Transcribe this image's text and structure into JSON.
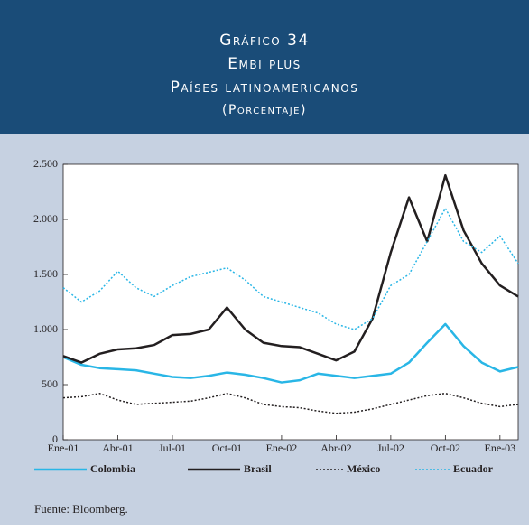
{
  "chart_data": {
    "type": "line",
    "title_lines": [
      "Gráfico 34",
      "Embi plus",
      "Países latinoamericanos",
      "(Porcentaje)"
    ],
    "source": "Fuente: Bloomberg.",
    "categories": [
      "Ene-01",
      null,
      null,
      "Abr-01",
      null,
      null,
      "Jul-01",
      null,
      null,
      "Oct-01",
      null,
      null,
      "Ene-02",
      null,
      null,
      "Abr-02",
      null,
      null,
      "Jul-02",
      null,
      null,
      "Oct-02",
      null,
      null,
      "Ene-03",
      null
    ],
    "series": [
      {
        "name": "Colombia",
        "color": "#29b6e6",
        "style": "solid",
        "values": [
          750,
          680,
          650,
          640,
          630,
          600,
          570,
          560,
          580,
          610,
          590,
          560,
          520,
          540,
          600,
          580,
          560,
          580,
          600,
          700,
          880,
          1050,
          850,
          700,
          620,
          660
        ]
      },
      {
        "name": "Brasil",
        "color": "#231f20",
        "style": "solid",
        "values": [
          760,
          700,
          780,
          820,
          830,
          860,
          950,
          960,
          1000,
          1200,
          1000,
          880,
          850,
          840,
          780,
          720,
          800,
          1100,
          1700,
          2200,
          1800,
          2400,
          1900,
          1600,
          1400,
          1300
        ]
      },
      {
        "name": "México",
        "color": "#231f20",
        "style": "dotted",
        "values": [
          380,
          390,
          420,
          360,
          320,
          330,
          340,
          350,
          380,
          420,
          380,
          320,
          300,
          290,
          260,
          240,
          250,
          280,
          320,
          360,
          400,
          420,
          380,
          330,
          300,
          320
        ]
      },
      {
        "name": "Ecuador",
        "color": "#29b6e6",
        "style": "dotted",
        "values": [
          1380,
          1250,
          1350,
          1530,
          1380,
          1300,
          1400,
          1480,
          1520,
          1560,
          1450,
          1300,
          1250,
          1200,
          1150,
          1050,
          1000,
          1100,
          1400,
          1500,
          1800,
          2100,
          1800,
          1700,
          1850,
          1600
        ]
      }
    ],
    "ylim": [
      0,
      2500
    ],
    "yticks": [
      0,
      500,
      {
        "value": 1000,
        "label": "1.000"
      },
      {
        "value": 1500,
        "label": "1.500"
      },
      {
        "value": 2000,
        "label": "2.000"
      },
      {
        "value": 2500,
        "label": "2.500"
      }
    ],
    "grid": false,
    "legend": "bottom"
  }
}
